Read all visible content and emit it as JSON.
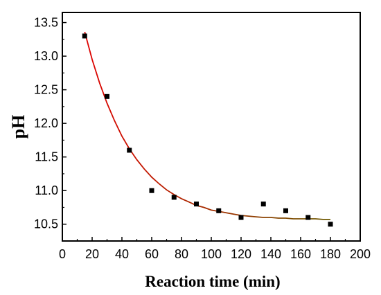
{
  "chart_data": {
    "type": "scatter",
    "xlabel": "Reaction time (min)",
    "ylabel": "pH",
    "xlim": [
      0,
      200
    ],
    "ylim": [
      10.25,
      13.65
    ],
    "x_ticks": [
      0,
      20,
      40,
      60,
      80,
      100,
      120,
      140,
      160,
      180,
      200
    ],
    "x_tick_labels": [
      "0",
      "20",
      "40",
      "60",
      "80",
      "100",
      "120",
      "140",
      "160",
      "180",
      "200"
    ],
    "y_ticks": [
      10.5,
      11.0,
      11.5,
      12.0,
      12.5,
      13.0,
      13.5
    ],
    "y_tick_labels": [
      "10.5",
      "11.0",
      "11.5",
      "12.0",
      "12.5",
      "13.0",
      "13.5"
    ],
    "grid": false,
    "series": [
      {
        "x": [
          15,
          30,
          45,
          60,
          75,
          90,
          105,
          120,
          135,
          150,
          165,
          180
        ],
        "y": [
          13.3,
          12.4,
          11.6,
          11.0,
          10.9,
          10.8,
          10.7,
          10.6,
          10.8,
          10.7,
          10.6,
          10.5
        ],
        "marker": "square",
        "color": "#000000"
      }
    ],
    "fit_curve": {
      "x": [
        15,
        20,
        25,
        30,
        35,
        40,
        45,
        50,
        55,
        60,
        65,
        70,
        75,
        80,
        85,
        90,
        95,
        100,
        105,
        110,
        115,
        120,
        125,
        130,
        135,
        140,
        145,
        150,
        155,
        160,
        165,
        170,
        175,
        180
      ],
      "y": [
        13.36,
        12.95,
        12.6,
        12.3,
        12.04,
        11.81,
        11.62,
        11.46,
        11.32,
        11.2,
        11.1,
        11.01,
        10.94,
        10.88,
        10.83,
        10.78,
        10.75,
        10.71,
        10.69,
        10.67,
        10.65,
        10.63,
        10.62,
        10.61,
        10.6,
        10.6,
        10.59,
        10.59,
        10.58,
        10.58,
        10.58,
        10.58,
        10.57,
        10.57
      ],
      "colors": [
        "#e00000",
        "#6b5a00"
      ]
    }
  }
}
